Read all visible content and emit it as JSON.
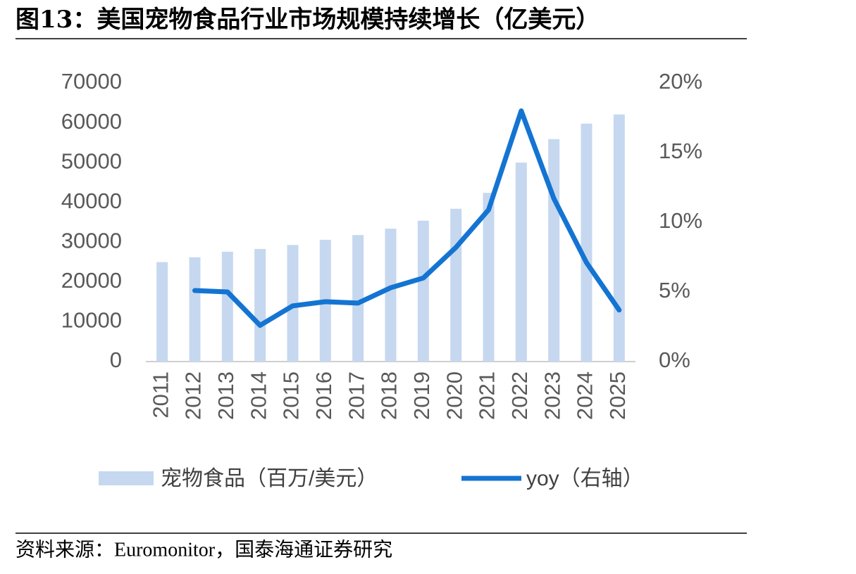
{
  "chart_data": {
    "type": "bar",
    "title": "图13：美国宠物食品行业市场规模持续增长（亿美元）",
    "source": "资料来源：Euromonitor，国泰海通证券研究",
    "categories": [
      "2011",
      "2012",
      "2013",
      "2014",
      "2015",
      "2016",
      "2017",
      "2018",
      "2019",
      "2020",
      "2021",
      "2022",
      "2023",
      "2024",
      "2025"
    ],
    "series": [
      {
        "name": "宠物食品（百万/美元）",
        "type": "bar",
        "color": "#c6d8f0",
        "values": [
          25000,
          26200,
          27600,
          28300,
          29300,
          30600,
          31800,
          33400,
          35400,
          38400,
          42400,
          50000,
          55900,
          59800,
          62100
        ]
      },
      {
        "name": "yoy（右轴）",
        "type": "line",
        "axis": "y2",
        "color": "#1474d2",
        "values": [
          null,
          5.1,
          5.0,
          2.6,
          4.0,
          4.3,
          4.2,
          5.3,
          6.0,
          8.2,
          10.9,
          18.0,
          11.7,
          7.1,
          3.7
        ]
      }
    ],
    "ylim": [
      0,
      70000
    ],
    "yticks": [
      0,
      10000,
      20000,
      30000,
      40000,
      50000,
      60000,
      70000
    ],
    "y2lim": [
      0,
      20
    ],
    "y2ticks": [
      {
        "value": 0,
        "label": "0%"
      },
      {
        "value": 5,
        "label": "5%"
      },
      {
        "value": 10,
        "label": "10%"
      },
      {
        "value": 15,
        "label": "15%"
      },
      {
        "value": 20,
        "label": "20%"
      }
    ],
    "grid": false,
    "legend": "bottom"
  }
}
